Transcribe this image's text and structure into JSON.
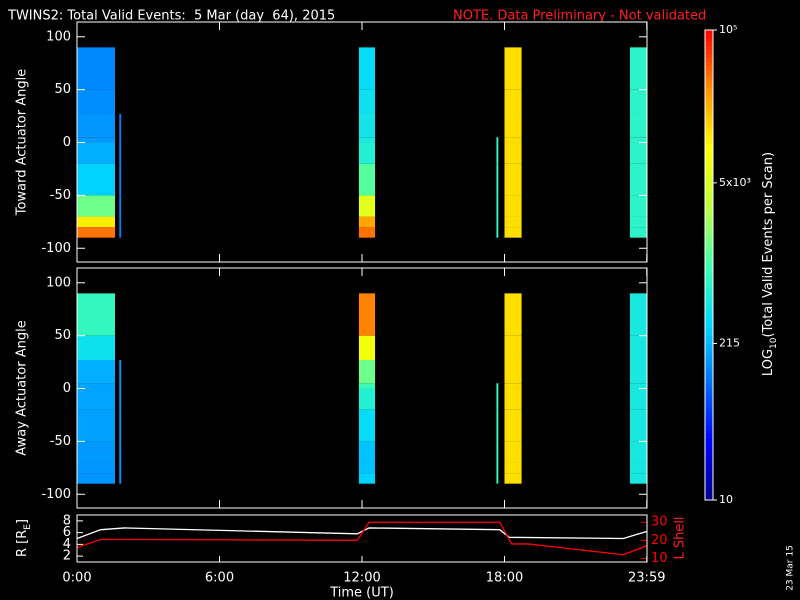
{
  "header": {
    "title": "TWINS2: Total Valid Events:  5 Mar (day  64), 2015",
    "note": "NOTE. Data Preliminary - Not validated",
    "date_stamp": "23 Mar 15"
  },
  "colorbar": {
    "label_main": "LOG",
    "label_sub": "10",
    "label_rest": "(Total Valid Events per Scan)",
    "log": true,
    "lim": [
      10,
      100000
    ],
    "ticks": [
      {
        "value": 10,
        "label": "10"
      },
      {
        "value": 215,
        "label": "215"
      },
      {
        "value": 5000,
        "label": "5x10³"
      },
      {
        "value": 100000,
        "label": "10⁵"
      }
    ],
    "colormap": [
      "#000088",
      "#0000ff",
      "#0070ff",
      "#00d8ff",
      "#40ffb0",
      "#c0ff40",
      "#ffff00",
      "#ff9000",
      "#ff0000"
    ]
  },
  "chart_data": [
    {
      "type": "heatmap",
      "ylabel": "Toward Actuator Angle",
      "xlim": [
        0,
        24
      ],
      "ylim": [
        -113,
        114
      ],
      "yticks": [
        -100,
        -50,
        0,
        50,
        100
      ],
      "x": [
        0,
        1.6,
        1.78,
        1.86,
        11.87,
        12.55,
        17.66,
        17.74,
        18.0,
        18.72,
        23.28,
        24
      ],
      "y": [
        -90,
        -80,
        -70,
        -50,
        -20,
        0,
        5,
        27,
        50,
        90
      ],
      "values": [
        [
          40000,
          null,
          120,
          null,
          40000,
          null,
          800,
          null,
          14000,
          null,
          700
        ],
        [
          12000,
          null,
          120,
          null,
          25000,
          null,
          800,
          null,
          14000,
          null,
          700
        ],
        [
          1500,
          null,
          120,
          null,
          6000,
          null,
          800,
          null,
          14000,
          null,
          700
        ],
        [
          300,
          null,
          120,
          null,
          1200,
          null,
          800,
          null,
          14000,
          null,
          700
        ],
        [
          200,
          null,
          120,
          null,
          600,
          null,
          800,
          null,
          14000,
          null,
          700
        ],
        [
          160,
          null,
          120,
          null,
          500,
          null,
          800,
          null,
          14000,
          null,
          700
        ],
        [
          150,
          null,
          120,
          null,
          450,
          null,
          null,
          null,
          14000,
          null,
          700
        ],
        [
          140,
          null,
          null,
          null,
          400,
          null,
          null,
          null,
          14000,
          null,
          700
        ],
        [
          130,
          null,
          null,
          null,
          350,
          null,
          null,
          null,
          14000,
          null,
          700
        ]
      ]
    },
    {
      "type": "heatmap",
      "ylabel": "Away Actuator Angle",
      "xlim": [
        0,
        24
      ],
      "ylim": [
        -113,
        114
      ],
      "yticks": [
        -100,
        -50,
        0,
        50,
        100
      ],
      "x": [
        0,
        1.6,
        1.78,
        1.86,
        11.87,
        12.55,
        17.66,
        17.74,
        18.0,
        18.72,
        23.28,
        24
      ],
      "y": [
        -90,
        -80,
        -70,
        -50,
        -20,
        0,
        5,
        27,
        50,
        90
      ],
      "values": [
        [
          150,
          null,
          150,
          null,
          300,
          null,
          900,
          null,
          14000,
          null,
          500
        ],
        [
          150,
          null,
          150,
          null,
          250,
          null,
          900,
          null,
          14000,
          null,
          500
        ],
        [
          160,
          null,
          150,
          null,
          250,
          null,
          900,
          null,
          14000,
          null,
          500
        ],
        [
          170,
          null,
          150,
          null,
          350,
          null,
          900,
          null,
          14000,
          null,
          500
        ],
        [
          180,
          null,
          150,
          null,
          600,
          null,
          900,
          null,
          14000,
          null,
          500
        ],
        [
          180,
          null,
          150,
          null,
          900,
          null,
          900,
          null,
          14000,
          null,
          500
        ],
        [
          200,
          null,
          150,
          null,
          1500,
          null,
          null,
          null,
          14000,
          null,
          500
        ],
        [
          400,
          null,
          null,
          null,
          8000,
          null,
          null,
          null,
          14000,
          null,
          500
        ],
        [
          800,
          null,
          null,
          null,
          35000,
          null,
          null,
          null,
          14000,
          null,
          500
        ]
      ]
    },
    {
      "type": "line",
      "xlabel": "Time (UT)",
      "ylabel_main": "R [R",
      "ylabel_sub": "E",
      "ylabel_end": "]",
      "y2label": "L Shell",
      "xlim": [
        0,
        24
      ],
      "xticks": [
        {
          "value": 0,
          "label": "0:00"
        },
        {
          "value": 6,
          "label": "6:00"
        },
        {
          "value": 12,
          "label": "12:00"
        },
        {
          "value": 18,
          "label": "18:00"
        },
        {
          "value": 23.99,
          "label": "23:59"
        }
      ],
      "ylim": [
        1,
        9
      ],
      "yticks": [
        2,
        4,
        6,
        8
      ],
      "y2lim": [
        8,
        34
      ],
      "y2ticks": [
        10,
        20,
        30
      ],
      "y2color": "#ff0000",
      "series": [
        {
          "color": "#ffffff",
          "x": [
            0,
            1,
            2,
            11.8,
            12.3,
            17.8,
            18.2,
            23,
            23.99
          ],
          "values": [
            5,
            6.5,
            6.8,
            5.8,
            6.8,
            6.5,
            5.2,
            5,
            6.2
          ]
        },
        {
          "color": "#ff0000",
          "axis": "y2",
          "x": [
            0,
            1,
            11.8,
            12.3,
            17.8,
            18.3,
            19,
            23,
            23.99
          ],
          "values": [
            16,
            20.5,
            20,
            30,
            30,
            18,
            18,
            12,
            17
          ]
        }
      ]
    }
  ]
}
